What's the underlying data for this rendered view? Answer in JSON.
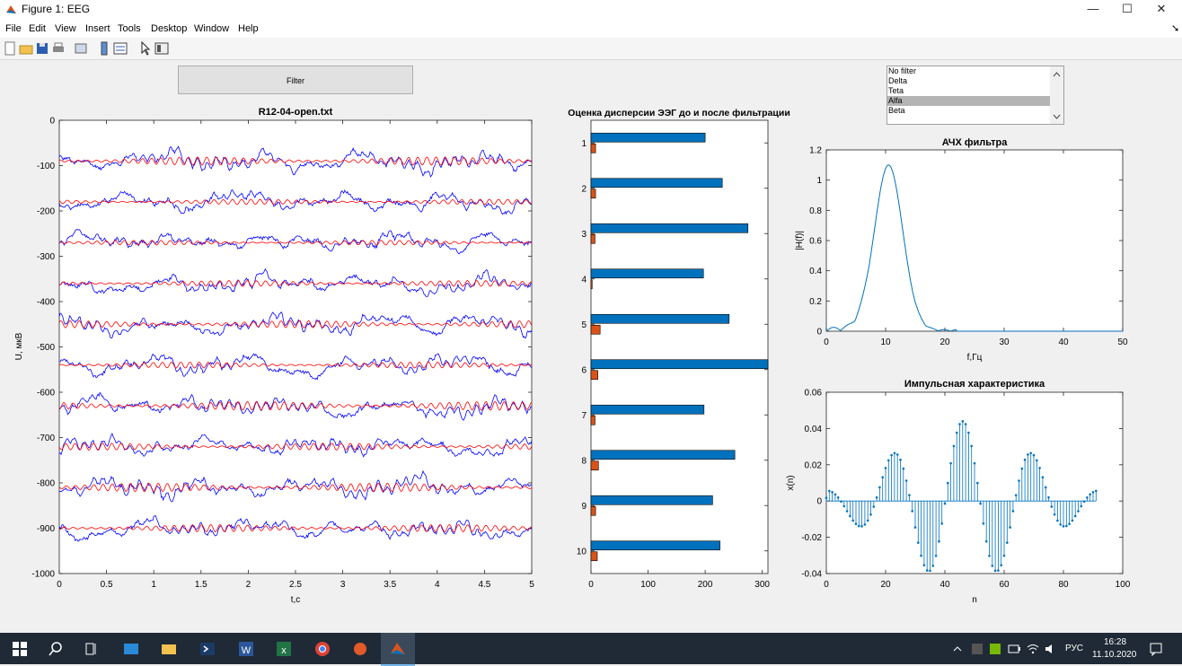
{
  "window": {
    "title": "Figure 1: EEG",
    "minimize": "—",
    "maximize": "☐",
    "close": "✕"
  },
  "menu": [
    "File",
    "Edit",
    "View",
    "Insert",
    "Tools",
    "Desktop",
    "Window",
    "Help"
  ],
  "menu_arrow": "➘",
  "filter_button": "Filter",
  "filter_list": {
    "items": [
      "No filter",
      "Delta",
      "Teta",
      "Alfa",
      "Beta"
    ],
    "selected": 3
  },
  "chart_data": [
    {
      "type": "line",
      "title": "R12-04-open.txt",
      "xlabel": "t,c",
      "ylabel": "U, мкВ",
      "xlim": [
        0,
        5
      ],
      "ylim": [
        -1000,
        0
      ],
      "xticks": [
        "0",
        "0.5",
        "1",
        "1.5",
        "2",
        "2.5",
        "3",
        "3.5",
        "4",
        "4.5",
        "5"
      ],
      "yticks": [
        "0",
        "-100",
        "-200",
        "-300",
        "-400",
        "-500",
        "-600",
        "-700",
        "-800",
        "-900",
        "-1000"
      ],
      "channel_offsets": [
        -90,
        -180,
        -270,
        -360,
        -450,
        -540,
        -630,
        -720,
        -810,
        -900
      ],
      "series": [
        {
          "color": "#0000ff",
          "description": "raw EEG, 10 channels"
        },
        {
          "color": "#ff0000",
          "description": "alpha-filtered EEG, 10 channels"
        }
      ]
    },
    {
      "type": "bar",
      "orientation": "horizontal",
      "title": "Оценка дисперсии ЭЭГ до и после фильтрации",
      "categories": [
        "1",
        "2",
        "3",
        "4",
        "5",
        "6",
        "7",
        "8",
        "9",
        "10"
      ],
      "xticks": [
        "0",
        "100",
        "200",
        "300"
      ],
      "xlim": [
        0,
        310
      ],
      "series": [
        {
          "color": "#0072bd",
          "values": [
            200,
            230,
            275,
            197,
            242,
            315,
            198,
            252,
            213,
            226
          ]
        },
        {
          "color": "#d95319",
          "values": [
            8,
            8,
            7,
            2,
            16,
            12,
            7,
            13,
            8,
            11
          ]
        }
      ]
    },
    {
      "type": "line",
      "title": "АЧХ фильтра",
      "xlabel": "f,Гц",
      "ylabel": "|H(f)|",
      "xlim": [
        0,
        50
      ],
      "ylim": [
        0,
        1.2
      ],
      "xticks": [
        "0",
        "10",
        "20",
        "30",
        "40",
        "50"
      ],
      "yticks": [
        "0",
        "0.2",
        "0.4",
        "0.6",
        "0.8",
        "1",
        "1.2"
      ],
      "peak": {
        "x": 10.5,
        "y": 1.1
      },
      "series": [
        {
          "color": "#0072bd"
        }
      ]
    },
    {
      "type": "stem",
      "title": "Импульсная характеристика",
      "xlabel": "n",
      "ylabel": "x(n)",
      "xlim": [
        0,
        100
      ],
      "ylim": [
        -0.04,
        0.06
      ],
      "xticks": [
        "0",
        "20",
        "40",
        "60",
        "80",
        "100"
      ],
      "yticks": [
        "0.06",
        "0.04",
        "0.02",
        "0",
        "-0.02",
        "-0.04"
      ],
      "n_max": 91,
      "peaks": [
        {
          "x": 46,
          "y": 0.044
        },
        {
          "x": 35,
          "y": -0.038
        },
        {
          "x": 58,
          "y": -0.038
        },
        {
          "x": 23,
          "y": 0.025
        },
        {
          "x": 70,
          "y": 0.025
        }
      ],
      "series": [
        {
          "color": "#0072bd"
        }
      ]
    }
  ],
  "taskbar": {
    "lang": "РУС",
    "time": "16:28",
    "date": "11.10.2020"
  }
}
